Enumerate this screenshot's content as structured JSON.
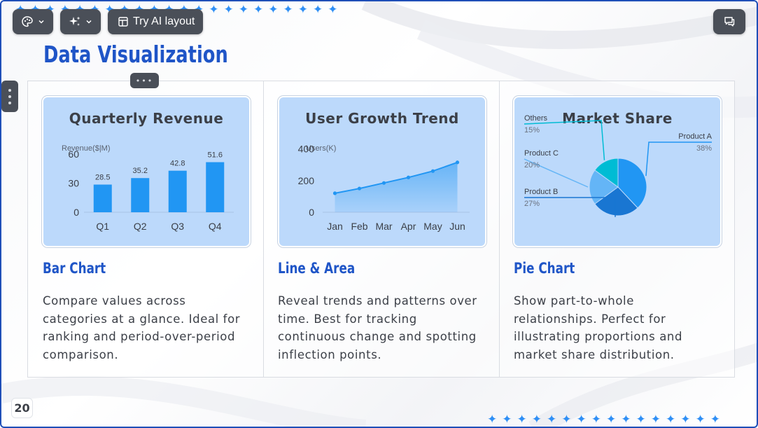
{
  "toolbar": {
    "theme_icon": "palette-icon",
    "magic_icon": "sparkle-icon",
    "layout_icon": "layout-icon",
    "ai_layout_label": "Try AI layout",
    "chat_icon": "chat-icon"
  },
  "slide": {
    "title": "Data Visualization",
    "page_number": "20",
    "accent_color": "#1f55c7",
    "chart_color": "#2196f3",
    "card_background": "#bcd9fb"
  },
  "columns": [
    {
      "heading": "Bar Chart",
      "description": "Compare values across categories at a glance. Ideal for ranking and period-over-period comparison."
    },
    {
      "heading": "Line & Area",
      "description": "Reveal trends and patterns over time. Best for tracking continuous change and spotting inflection points."
    },
    {
      "heading": "Pie Chart",
      "description": "Show part-to-whole relationships. Perfect for illustrating proportions and market share distribution."
    }
  ],
  "chart_data": [
    {
      "type": "bar",
      "title": "Quarterly Revenue",
      "ylabel": "Revenue($|M)",
      "categories": [
        "Q1",
        "Q2",
        "Q3",
        "Q4"
      ],
      "values": [
        28.5,
        35.2,
        42.8,
        51.6
      ],
      "yticks": [
        0,
        30,
        60
      ],
      "ylim": [
        0,
        70
      ],
      "grid": false
    },
    {
      "type": "area",
      "title": "User Growth Trend",
      "ylabel": "Users(K)",
      "categories": [
        "Jan",
        "Feb",
        "Mar",
        "Apr",
        "May",
        "Jun"
      ],
      "values": [
        120,
        150,
        185,
        220,
        260,
        315
      ],
      "yticks": [
        0,
        200,
        400
      ],
      "ylim": [
        0,
        460
      ],
      "grid": false
    },
    {
      "type": "pie",
      "title": "Market Share",
      "slices": [
        {
          "label": "Product A",
          "pct_label": "38%",
          "value": 38,
          "color": "#2196f3"
        },
        {
          "label": "Product B",
          "pct_label": "27%",
          "value": 27,
          "color": "#1976d2"
        },
        {
          "label": "Product C",
          "pct_label": "20%",
          "value": 20,
          "color": "#64b5f6"
        },
        {
          "label": "Others",
          "pct_label": "15%",
          "value": 15,
          "color": "#00bcd4"
        }
      ]
    }
  ]
}
